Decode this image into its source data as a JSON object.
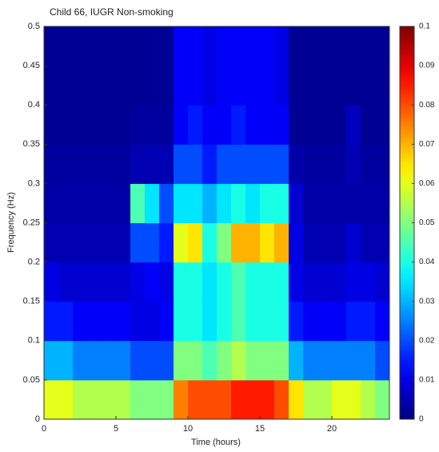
{
  "chart_data": {
    "type": "heatmap",
    "title": "Child  66,  IUGR  Non-smoking",
    "xlabel": "Time (hours)",
    "ylabel": "Frequency (Hz)",
    "xbins": [
      0,
      1,
      2,
      3,
      4,
      5,
      6,
      7,
      8,
      9,
      10,
      11,
      12,
      13,
      14,
      15,
      16,
      17,
      18,
      19,
      20,
      21,
      22,
      23,
      24
    ],
    "ybins": [
      0,
      0.05,
      0.1,
      0.15,
      0.2,
      0.25,
      0.3,
      0.35,
      0.4,
      0.45,
      0.5
    ],
    "z": [
      [
        0.06,
        0.06,
        0.055,
        0.055,
        0.055,
        0.055,
        0.05,
        0.05,
        0.05,
        0.075,
        0.08,
        0.08,
        0.08,
        0.085,
        0.085,
        0.085,
        0.08,
        0.065,
        0.055,
        0.055,
        0.06,
        0.06,
        0.055,
        0.05
      ],
      [
        0.03,
        0.03,
        0.025,
        0.025,
        0.025,
        0.025,
        0.02,
        0.02,
        0.02,
        0.05,
        0.05,
        0.045,
        0.05,
        0.055,
        0.05,
        0.05,
        0.05,
        0.03,
        0.025,
        0.025,
        0.025,
        0.025,
        0.025,
        0.02
      ],
      [
        0.015,
        0.015,
        0.012,
        0.012,
        0.012,
        0.012,
        0.01,
        0.01,
        0.012,
        0.04,
        0.04,
        0.035,
        0.04,
        0.045,
        0.04,
        0.04,
        0.04,
        0.015,
        0.012,
        0.012,
        0.012,
        0.015,
        0.015,
        0.012
      ],
      [
        0.01,
        0.008,
        0.008,
        0.008,
        0.008,
        0.008,
        0.01,
        0.012,
        0.01,
        0.04,
        0.04,
        0.035,
        0.04,
        0.045,
        0.04,
        0.04,
        0.04,
        0.01,
        0.008,
        0.008,
        0.008,
        0.01,
        0.01,
        0.008
      ],
      [
        0.005,
        0.005,
        0.005,
        0.005,
        0.005,
        0.005,
        0.02,
        0.02,
        0.015,
        0.06,
        0.065,
        0.04,
        0.05,
        0.07,
        0.07,
        0.065,
        0.07,
        0.01,
        0.005,
        0.005,
        0.005,
        0.008,
        0.005,
        0.005
      ],
      [
        0.004,
        0.004,
        0.004,
        0.004,
        0.004,
        0.004,
        0.045,
        0.035,
        0.02,
        0.035,
        0.035,
        0.03,
        0.035,
        0.04,
        0.035,
        0.04,
        0.04,
        0.008,
        0.004,
        0.004,
        0.004,
        0.004,
        0.004,
        0.004
      ],
      [
        0.003,
        0.003,
        0.003,
        0.003,
        0.003,
        0.003,
        0.005,
        0.005,
        0.005,
        0.02,
        0.02,
        0.015,
        0.02,
        0.02,
        0.02,
        0.02,
        0.02,
        0.004,
        0.003,
        0.003,
        0.003,
        0.005,
        0.003,
        0.003
      ],
      [
        0.002,
        0.002,
        0.002,
        0.002,
        0.002,
        0.002,
        0.003,
        0.003,
        0.003,
        0.012,
        0.015,
        0.012,
        0.012,
        0.015,
        0.012,
        0.012,
        0.012,
        0.002,
        0.002,
        0.002,
        0.002,
        0.006,
        0.002,
        0.002
      ],
      [
        0.002,
        0.002,
        0.002,
        0.002,
        0.002,
        0.002,
        0.002,
        0.002,
        0.002,
        0.012,
        0.012,
        0.01,
        0.012,
        0.012,
        0.012,
        0.012,
        0.01,
        0.002,
        0.002,
        0.002,
        0.002,
        0.002,
        0.002,
        0.002
      ],
      [
        0.002,
        0.002,
        0.002,
        0.002,
        0.002,
        0.002,
        0.002,
        0.002,
        0.002,
        0.012,
        0.012,
        0.01,
        0.012,
        0.012,
        0.012,
        0.012,
        0.01,
        0.002,
        0.002,
        0.002,
        0.002,
        0.002,
        0.002,
        0.002
      ]
    ],
    "colormap": "jet",
    "clim": [
      0,
      0.1
    ],
    "cticks": [
      0,
      0.01,
      0.02,
      0.03,
      0.04,
      0.05,
      0.06,
      0.07,
      0.08,
      0.09,
      0.1
    ],
    "xlim": [
      0,
      24
    ],
    "xticks": [
      0,
      5,
      10,
      15,
      20
    ],
    "ylim": [
      0,
      0.5
    ],
    "yticks": [
      0,
      0.05,
      0.1,
      0.15,
      0.2,
      0.25,
      0.3,
      0.35,
      0.4,
      0.45,
      0.5
    ]
  }
}
